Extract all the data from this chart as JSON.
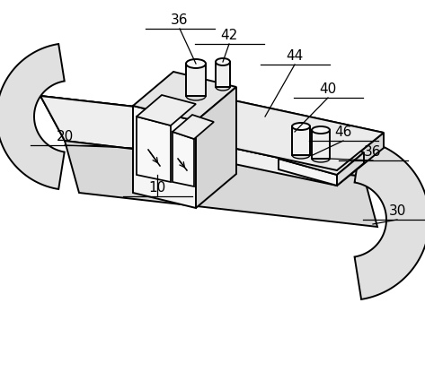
{
  "bg": "#ffffff",
  "lc": "#000000",
  "lw": 1.4,
  "fig_w": 4.73,
  "fig_h": 4.25,
  "dpi": 100,
  "label_fs": 11
}
